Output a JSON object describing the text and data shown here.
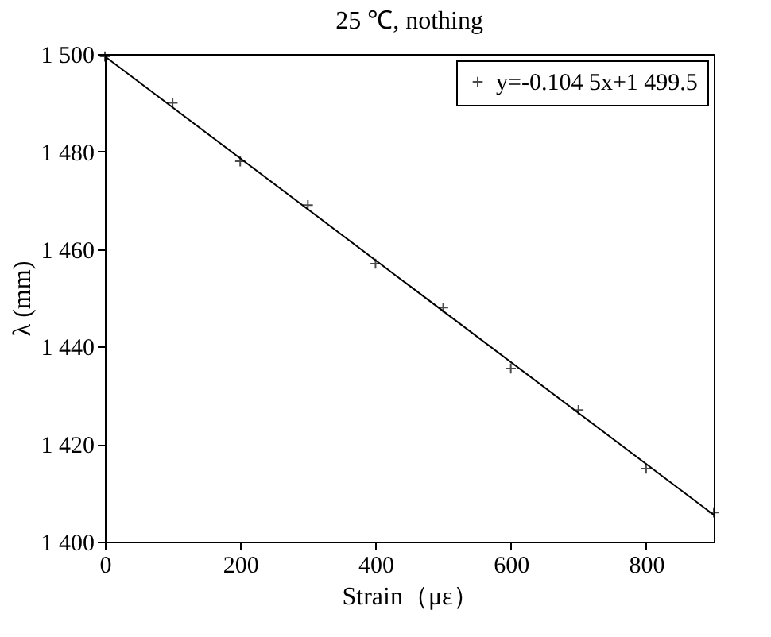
{
  "chart_data": {
    "type": "scatter",
    "title": "25 ℃, nothing",
    "xlabel": "Strain（με）",
    "ylabel": "λ (mm)",
    "series": [
      {
        "name": "y=-0.104 5x+1 499.5",
        "marker": "cross",
        "color": "#000000",
        "x": [
          0,
          100,
          200,
          300,
          400,
          500,
          600,
          700,
          800,
          900
        ],
        "values": [
          1499.5,
          1490,
          1478,
          1469,
          1457,
          1448,
          1435.5,
          1427,
          1415,
          1406
        ]
      },
      {
        "type": "line",
        "color": "#000000",
        "x": [
          0,
          900
        ],
        "values": [
          1499.5,
          1405.5
        ]
      }
    ],
    "xlim": [
      0,
      900
    ],
    "xticks": [
      0,
      200,
      400,
      600,
      800
    ],
    "ylim": [
      1400,
      1500
    ],
    "yticks": [
      {
        "value": 1400,
        "label": "1 400"
      },
      {
        "value": 1420,
        "label": "1 420"
      },
      {
        "value": 1440,
        "label": "1 440"
      },
      {
        "value": 1460,
        "label": "1 460"
      },
      {
        "value": 1480,
        "label": "1 480"
      },
      {
        "value": 1500,
        "label": "1 500"
      }
    ],
    "legend": "top right",
    "grid": false
  }
}
